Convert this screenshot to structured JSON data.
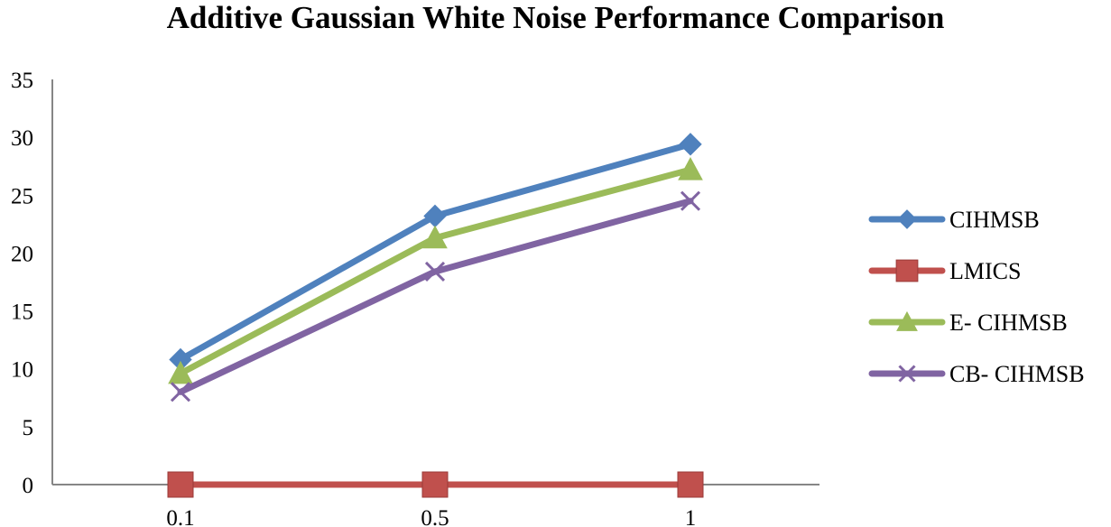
{
  "chart_data": {
    "type": "line",
    "title": "Additive Gaussian White Noise Performance Comparison",
    "xlabel": "",
    "ylabel": "",
    "categories": [
      "0.1",
      "0.5",
      "1"
    ],
    "ylim": [
      0,
      35
    ],
    "yticks": [
      "0",
      "5",
      "10",
      "15",
      "20",
      "25",
      "30",
      "35"
    ],
    "grid": false,
    "legend_position": "right",
    "series": [
      {
        "name": "CIHMSB",
        "values": [
          10.8,
          23.2,
          29.4
        ],
        "color": "#4f81bd",
        "marker": "diamond"
      },
      {
        "name": "LMICS",
        "values": [
          0,
          0,
          0
        ],
        "color": "#c0504d",
        "marker": "square"
      },
      {
        "name": "E- CIHMSB",
        "values": [
          9.6,
          21.3,
          27.2
        ],
        "color": "#9bbb59",
        "marker": "triangle"
      },
      {
        "name": "CB- CIHMSB",
        "values": [
          8.0,
          18.4,
          24.5
        ],
        "color": "#8064a2",
        "marker": "x"
      }
    ]
  }
}
